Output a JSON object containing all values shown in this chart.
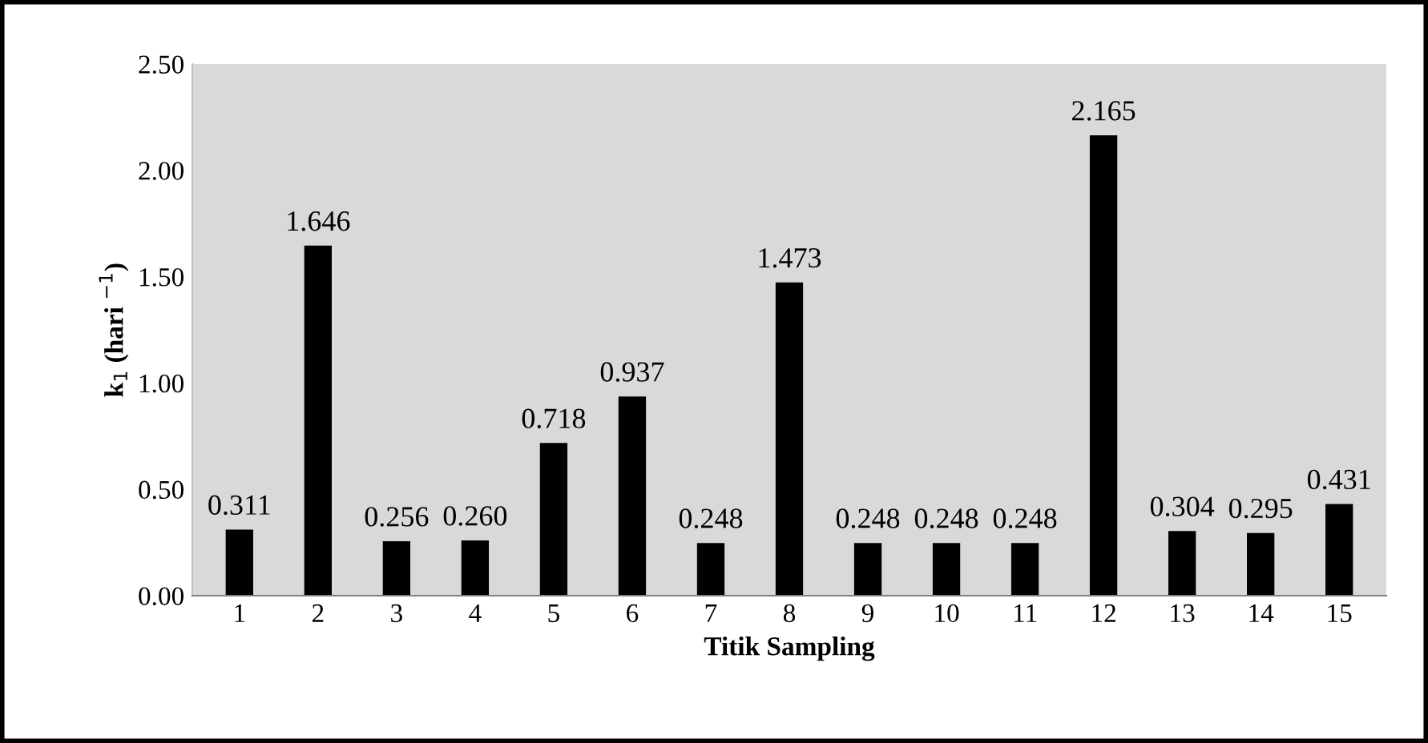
{
  "chart_data": {
    "type": "bar",
    "xlabel": "Titik Sampling",
    "ylabel": "k$_{1}$ (hari $^{−1}$)",
    "categories": [
      "1",
      "2",
      "3",
      "4",
      "5",
      "6",
      "7",
      "8",
      "9",
      "10",
      "11",
      "12",
      "13",
      "14",
      "15"
    ],
    "values": [
      0.311,
      1.646,
      0.256,
      0.26,
      0.718,
      0.937,
      0.248,
      1.473,
      0.248,
      0.248,
      0.248,
      2.165,
      0.304,
      0.295,
      0.431
    ],
    "value_labels": [
      "0.311",
      "1.646",
      "0.256",
      "0.260",
      "0.718",
      "0.937",
      "0.248",
      "1.473",
      "0.248",
      "0.248",
      "0.248",
      "2.165",
      "0.304",
      "0.295",
      "0.431"
    ],
    "color": "#000000",
    "ylim": [
      0,
      2.5
    ],
    "yticks": [
      {
        "value": 0,
        "label": "0.00"
      },
      {
        "value": 0.5,
        "label": "0.50"
      },
      {
        "value": 1,
        "label": "1.00"
      },
      {
        "value": 1.5,
        "label": "1.50"
      },
      {
        "value": 2,
        "label": "2.00"
      },
      {
        "value": 2.5,
        "label": "2.50"
      }
    ],
    "grid": false,
    "legend": false
  }
}
